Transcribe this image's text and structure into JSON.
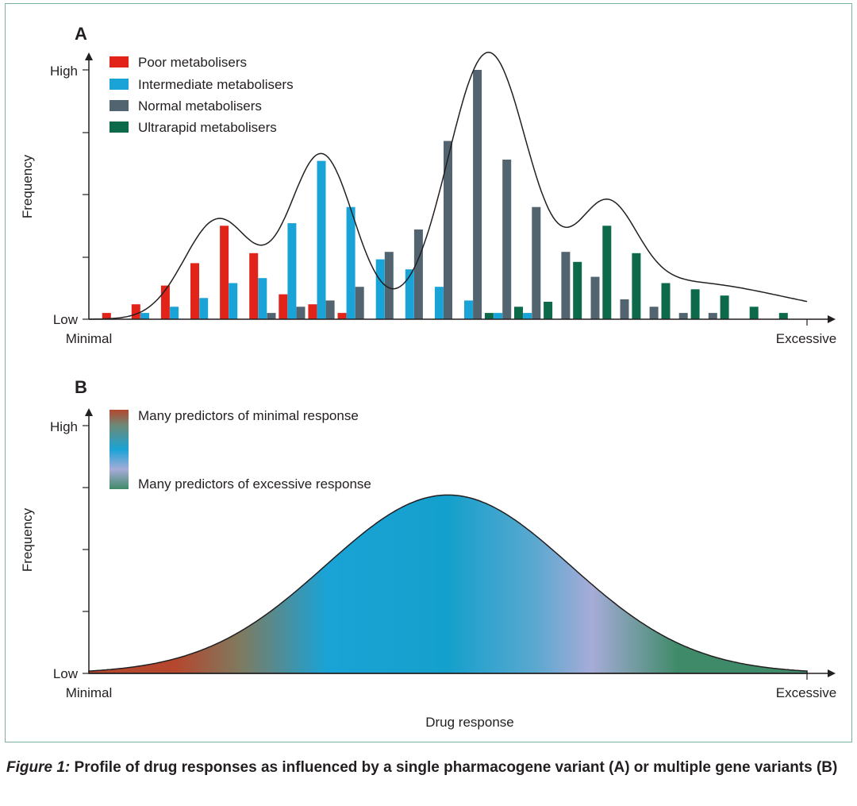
{
  "chart_data": [
    {
      "panel": "A",
      "type": "bar",
      "ylabel": "Frequency",
      "ytick_labels": [
        "Low",
        "High"
      ],
      "xtick_labels": [
        "Minimal",
        "Excessive"
      ],
      "grid": false,
      "legend_position": "top-left",
      "y_scale": [
        0,
        100
      ],
      "x_scale": [
        0,
        24.4
      ],
      "series": [
        {
          "name": "Poor metabolisers",
          "color": "#e2231a",
          "x": [
            0.6,
            1.6,
            2.6,
            3.6,
            4.6,
            5.6,
            6.6,
            7.6,
            8.6
          ],
          "values": [
            2.5,
            6,
            13.5,
            22.5,
            37.5,
            26.5,
            10,
            6,
            2.5
          ]
        },
        {
          "name": "Intermediate metabolisers",
          "color": "#1aa3d6",
          "x": [
            1.9,
            2.9,
            3.9,
            4.9,
            5.9,
            6.9,
            7.9,
            8.9,
            9.9,
            10.9,
            11.9,
            12.9,
            13.9,
            14.9
          ],
          "values": [
            2.5,
            5,
            8.5,
            14.5,
            16.5,
            38.5,
            63.5,
            45,
            24,
            20,
            13,
            7.5,
            2.5,
            2.5
          ]
        },
        {
          "name": "Normal metabolisers",
          "color": "#52646f",
          "x": [
            6.2,
            7.2,
            8.2,
            9.2,
            10.2,
            11.2,
            12.2,
            13.2,
            14.2,
            15.2,
            16.2,
            17.2,
            18.2,
            19.2,
            20.2,
            21.2,
            22.2
          ],
          "values": [
            2.5,
            5,
            7.5,
            13,
            27,
            36,
            71.5,
            100,
            64,
            45,
            27,
            17,
            8,
            5,
            2.5,
            2.5,
            0
          ]
        },
        {
          "name": "Ultrarapid metabolisers",
          "color": "#0c6a4a",
          "x": [
            13.6,
            14.6,
            15.6,
            16.6,
            17.6,
            18.6,
            19.6,
            20.6,
            21.6,
            22.6,
            23.6
          ],
          "values": [
            2.5,
            5,
            7,
            23,
            37.5,
            26.5,
            14.5,
            12,
            9.5,
            5,
            2.5
          ]
        }
      ]
    },
    {
      "panel": "B",
      "type": "area",
      "ylabel": "Frequency",
      "xlabel": "Drug response",
      "ytick_labels": [
        "Low",
        "High"
      ],
      "xtick_labels": [
        "Minimal",
        "Excessive"
      ],
      "grid": false,
      "legend_position": "top-left",
      "x_scale": [
        0,
        1
      ],
      "y_scale": [
        0,
        100
      ],
      "curve": {
        "mean": 0.5,
        "sd": 0.17,
        "peak": 72
      },
      "legend": {
        "top_label": "Many predictors of minimal response",
        "bottom_label": "Many predictors of excessive response"
      },
      "gradient_colors": [
        "#b5472e",
        "#1aa3d6",
        "#a6acd8",
        "#3f8a68"
      ]
    }
  ],
  "panels": {
    "a": {
      "label": "A"
    },
    "b": {
      "label": "B"
    }
  },
  "caption": {
    "label": "Figure 1:",
    "text": "Profile of drug responses as influenced by a single pharmacogene variant (A) or multiple gene variants (B)"
  }
}
